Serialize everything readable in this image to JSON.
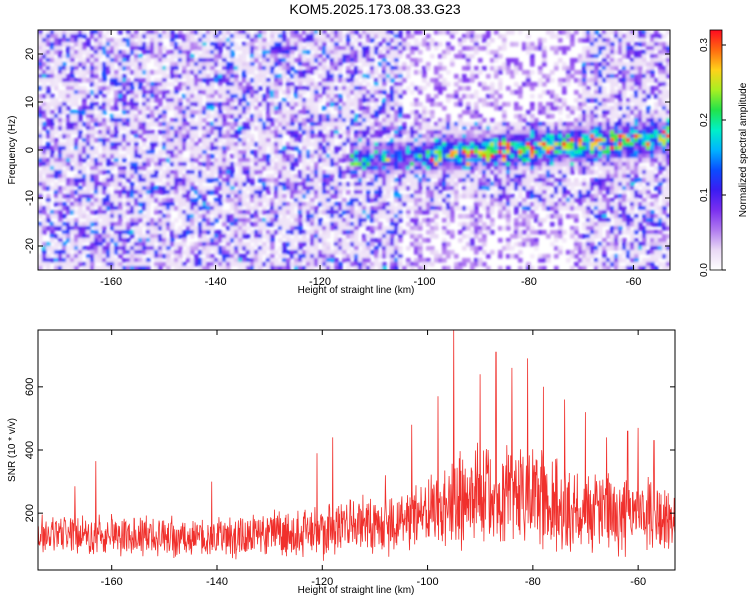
{
  "title": "KOM5.2025.173.08.33.G23",
  "colors": {
    "snr_line": "#f0302c",
    "frame": "#000000",
    "colormap": [
      "#ffffff",
      "#e9d8f5",
      "#b07af0",
      "#7a2ff0",
      "#3b1cf2",
      "#0a4cff",
      "#00b4ff",
      "#00f0c8",
      "#22e34a",
      "#a8f022",
      "#ffd21a",
      "#ff6a10",
      "#ff0a20"
    ]
  },
  "chart_data": [
    {
      "type": "heatmap",
      "title": "",
      "xlabel": "Height of straight line (km)",
      "ylabel": "Frequency (Hz)",
      "xlim": [
        -174,
        -53
      ],
      "ylim": [
        -25,
        25
      ],
      "xticks": [
        -160,
        -140,
        -120,
        -100,
        -80,
        -60
      ],
      "yticks": [
        -20,
        -10,
        0,
        10,
        20
      ],
      "colorbar": {
        "label": "Normalized spectral amplitude",
        "range": [
          0.0,
          0.32
        ],
        "ticks": [
          "0.0",
          "0.1",
          "0.2",
          "0.3"
        ]
      },
      "signal_band": {
        "description_values": {
          "x_start": -115,
          "x_end": -53,
          "freq_center_at_x_start": -2,
          "freq_center_at_x_end": 3
        },
        "peak_amplitude": 0.3
      }
    },
    {
      "type": "line",
      "title": "",
      "xlabel": "Height of straight line (km)",
      "ylabel": "SNR (10 * v/v)",
      "xlim": [
        -174,
        -53
      ],
      "ylim": [
        20,
        780
      ],
      "xticks": [
        -160,
        -140,
        -120,
        -100,
        -80,
        -60
      ],
      "yticks": [
        200,
        400,
        600
      ],
      "series": [
        {
          "name": "",
          "envelope": {
            "x": [
              -174,
              -160,
              -140,
              -125,
              -120,
              -110,
              -100,
              -95,
              -90,
              -85,
              -80,
              -75,
              -70,
              -65,
              -60,
              -55,
              -53
            ],
            "mean": [
              130,
              130,
              125,
              140,
              150,
              165,
              190,
              230,
              250,
              250,
              260,
              230,
              210,
              200,
              200,
              175,
              175
            ],
            "spread": [
              70,
              75,
              75,
              85,
              110,
              110,
              130,
              170,
              190,
              190,
              190,
              170,
              150,
              140,
              150,
              120,
              110
            ]
          },
          "spikes": [
            {
              "x": -167,
              "y": 285
            },
            {
              "x": -163,
              "y": 365
            },
            {
              "x": -141,
              "y": 300
            },
            {
              "x": -121,
              "y": 390
            },
            {
              "x": -118,
              "y": 440
            },
            {
              "x": -108,
              "y": 320
            },
            {
              "x": -103,
              "y": 480
            },
            {
              "x": -98,
              "y": 570
            },
            {
              "x": -95,
              "y": 780
            },
            {
              "x": -90,
              "y": 640
            },
            {
              "x": -87,
              "y": 710
            },
            {
              "x": -84,
              "y": 660
            },
            {
              "x": -81,
              "y": 690
            },
            {
              "x": -78,
              "y": 600
            },
            {
              "x": -74,
              "y": 560
            },
            {
              "x": -70,
              "y": 520
            },
            {
              "x": -66,
              "y": 440
            },
            {
              "x": -62,
              "y": 460
            },
            {
              "x": -60,
              "y": 470
            },
            {
              "x": -57,
              "y": 430
            }
          ]
        }
      ]
    }
  ]
}
